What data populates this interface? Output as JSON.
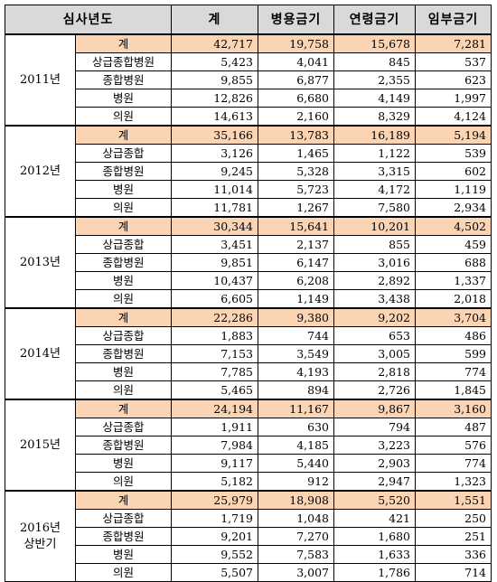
{
  "headers": [
    "심사년도",
    "계",
    "병용금기",
    "연령금기",
    "임부금기"
  ],
  "groups": [
    {
      "year": "2011년",
      "rows": [
        {
          "category": "계",
          "values": [
            "42,717",
            "19,758",
            "15,678",
            "7,281"
          ]
        },
        {
          "category": "상급종합병원",
          "values": [
            "5,423",
            "4,041",
            "845",
            "537"
          ]
        },
        {
          "category": "종합병원",
          "values": [
            "9,855",
            "6,877",
            "2,355",
            "623"
          ]
        },
        {
          "category": "병원",
          "values": [
            "12,826",
            "6,680",
            "4,149",
            "1,997"
          ]
        },
        {
          "category": "의원",
          "values": [
            "14,613",
            "2,160",
            "8,329",
            "4,124"
          ]
        }
      ]
    },
    {
      "year": "2012년",
      "rows": [
        {
          "category": "계",
          "values": [
            "35,166",
            "13,783",
            "16,189",
            "5,194"
          ]
        },
        {
          "category": "상급종합",
          "values": [
            "3,126",
            "1,465",
            "1,122",
            "539"
          ]
        },
        {
          "category": "종합병원",
          "values": [
            "9,245",
            "5,328",
            "3,315",
            "602"
          ]
        },
        {
          "category": "병원",
          "values": [
            "11,014",
            "5,723",
            "4,172",
            "1,119"
          ]
        },
        {
          "category": "의원",
          "values": [
            "11,781",
            "1,267",
            "7,580",
            "2,934"
          ]
        }
      ]
    },
    {
      "year": "2013년",
      "rows": [
        {
          "category": "계",
          "values": [
            "30,344",
            "15,641",
            "10,201",
            "4,502"
          ]
        },
        {
          "category": "상급종합",
          "values": [
            "3,451",
            "2,137",
            "855",
            "459"
          ]
        },
        {
          "category": "종합병원",
          "values": [
            "9,851",
            "6,147",
            "3,016",
            "688"
          ]
        },
        {
          "category": "병원",
          "values": [
            "10,437",
            "6,208",
            "2,892",
            "1,337"
          ]
        },
        {
          "category": "의원",
          "values": [
            "6,605",
            "1,149",
            "3,438",
            "2,018"
          ]
        }
      ]
    },
    {
      "year": "2014년",
      "rows": [
        {
          "category": "계",
          "values": [
            "22,286",
            "9,380",
            "9,202",
            "3,704"
          ]
        },
        {
          "category": "상급종합",
          "values": [
            "1,883",
            "744",
            "653",
            "486"
          ]
        },
        {
          "category": "종합병원",
          "values": [
            "7,153",
            "3,549",
            "3,005",
            "599"
          ]
        },
        {
          "category": "병원",
          "values": [
            "7,785",
            "4,193",
            "2,818",
            "774"
          ]
        },
        {
          "category": "의원",
          "values": [
            "5,465",
            "894",
            "2,726",
            "1,845"
          ]
        }
      ]
    },
    {
      "year": "2015년",
      "rows": [
        {
          "category": "계",
          "values": [
            "24,194",
            "11,167",
            "9,867",
            "3,160"
          ]
        },
        {
          "category": "상급종합",
          "values": [
            "1,911",
            "630",
            "794",
            "487"
          ]
        },
        {
          "category": "종합병원",
          "values": [
            "7,984",
            "4,185",
            "3,223",
            "576"
          ]
        },
        {
          "category": "병원",
          "values": [
            "9,117",
            "5,440",
            "2,903",
            "774"
          ]
        },
        {
          "category": "의원",
          "values": [
            "5,182",
            "912",
            "2,947",
            "1,323"
          ]
        }
      ]
    },
    {
      "year": "2016년\n상반기",
      "rows": [
        {
          "category": "계",
          "values": [
            "25,979",
            "18,908",
            "5,520",
            "1,551"
          ]
        },
        {
          "category": "상급종합",
          "values": [
            "1,719",
            "1,048",
            "421",
            "250"
          ]
        },
        {
          "category": "종합병원",
          "values": [
            "9,201",
            "7,270",
            "1,680",
            "251"
          ]
        },
        {
          "category": "병원",
          "values": [
            "9,552",
            "7,583",
            "1,633",
            "336"
          ]
        },
        {
          "category": "의원",
          "values": [
            "5,507",
            "3,007",
            "1,786",
            "714"
          ]
        }
      ]
    }
  ]
}
